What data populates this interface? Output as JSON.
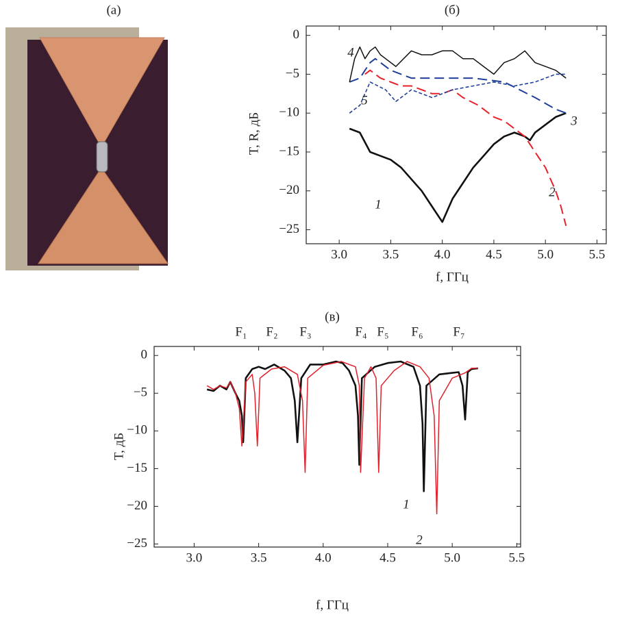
{
  "photo": {
    "label": "(a)"
  },
  "chart_data": [
    {
      "type": "line",
      "label": "(б)",
      "ylabel": "T, R, дБ",
      "xlabel": "f, ГГц",
      "xlim": [
        2.68,
        5.59
      ],
      "ylim": [
        -26.8,
        1.2
      ],
      "xticks": [
        {
          "value": 3,
          "label": "3.0"
        },
        3.5,
        {
          "value": 4,
          "label": "4.0"
        },
        4.5,
        {
          "value": 5,
          "label": "5.0"
        },
        5.5
      ],
      "yticks": [
        0,
        {
          "value": -5,
          "label": "−5"
        },
        {
          "value": -10,
          "label": "−10"
        },
        {
          "value": -15,
          "label": "−15"
        },
        {
          "value": -20,
          "label": "−20"
        },
        {
          "value": -25,
          "label": "−25"
        }
      ],
      "series": [
        {
          "name": "1",
          "color": "#111111",
          "line_style": "bold",
          "x": [
            3.1,
            3.2,
            3.3,
            3.4,
            3.5,
            3.6,
            3.7,
            3.8,
            3.9,
            4.0,
            4.1,
            4.2,
            4.3,
            4.4,
            4.5,
            4.6,
            4.7,
            4.8,
            4.85,
            4.9,
            5.0,
            5.1,
            5.2
          ],
          "values": [
            -12,
            -12.5,
            -15,
            -15.5,
            -16,
            -17,
            -18.5,
            -20,
            -22,
            -24,
            -21,
            -19,
            -17,
            -15.5,
            -14,
            -13,
            -12.5,
            -13,
            -13.5,
            -12.5,
            -11.5,
            -10.5,
            -10
          ]
        },
        {
          "name": "2",
          "color": "#e8202a",
          "line_style": "dashed",
          "x": [
            3.25,
            3.3,
            3.4,
            3.5,
            3.6,
            3.7,
            3.8,
            3.9,
            4.0,
            4.1,
            4.2,
            4.35,
            4.5,
            4.6,
            4.7,
            4.8,
            4.9,
            5.0,
            5.1,
            5.15,
            5.2
          ],
          "values": [
            -5,
            -4.5,
            -5.5,
            -6,
            -6.5,
            -6.5,
            -7,
            -7.5,
            -7.5,
            -7,
            -8,
            -9,
            -10.5,
            -11,
            -12,
            -13,
            -15,
            -17,
            -20,
            -22,
            -24.5
          ]
        },
        {
          "name": "3",
          "color": "#1f3f9a",
          "line_style": "dashed",
          "x": [
            3.1,
            3.2,
            3.3,
            3.35,
            3.5,
            3.7,
            3.9,
            4.0,
            4.3,
            4.6,
            4.9,
            5.1,
            5.2
          ],
          "values": [
            -6,
            -5.5,
            -3.5,
            -3,
            -4.5,
            -5.5,
            -5.5,
            -5.5,
            -5.5,
            -6,
            -8,
            -9.5,
            -10
          ]
        },
        {
          "name": "4",
          "color": "#111111",
          "line_style": "solid",
          "x": [
            3.1,
            3.15,
            3.2,
            3.25,
            3.3,
            3.35,
            3.4,
            3.45,
            3.55,
            3.7,
            3.8,
            3.9,
            4.0,
            4.1,
            4.2,
            4.3,
            4.4,
            4.5,
            4.6,
            4.7,
            4.8,
            4.9,
            5.0,
            5.1,
            5.2
          ],
          "values": [
            -6,
            -3,
            -1.5,
            -3,
            -2,
            -1.5,
            -2.5,
            -3,
            -4,
            -2,
            -2.5,
            -2.5,
            -2,
            -2,
            -3,
            -3,
            -4,
            -5,
            -3.5,
            -3,
            -2,
            -3.5,
            -4,
            -4.5,
            -5.5
          ]
        },
        {
          "name": "5",
          "color": "#1f3f9a",
          "line_style": "dotted",
          "x": [
            3.1,
            3.2,
            3.3,
            3.45,
            3.55,
            3.7,
            3.9,
            4.1,
            4.3,
            4.5,
            4.7,
            4.9,
            5.0,
            5.1,
            5.2
          ],
          "values": [
            -10,
            -9,
            -6,
            -7,
            -8.5,
            -7,
            -8,
            -7,
            -6.5,
            -6,
            -6.5,
            -6,
            -5.5,
            -5,
            -5
          ]
        }
      ]
    },
    {
      "type": "line",
      "label": "(в)",
      "ylabel": "T, дБ",
      "xlabel": "f, ГГц",
      "xlim": [
        2.69,
        5.53
      ],
      "ylim": [
        -25.4,
        1.2
      ],
      "xticks": [
        {
          "value": 3,
          "label": "3.0"
        },
        3.5,
        {
          "value": 4,
          "label": "4.0"
        },
        4.5,
        {
          "value": 5,
          "label": "5.0"
        },
        5.5
      ],
      "yticks": [
        0,
        {
          "value": -5,
          "label": "−5"
        },
        {
          "value": -10,
          "label": "−10"
        },
        {
          "value": -15,
          "label": "−15"
        },
        {
          "value": -20,
          "label": "−20"
        },
        {
          "value": -25,
          "label": "−25"
        }
      ],
      "annotations": [
        "F₁",
        "F₂",
        "F₃",
        "F₄",
        "F₅",
        "F₆",
        "F₇"
      ],
      "series": [
        {
          "name": "1",
          "color": "#111111",
          "line_style": "bold",
          "x": [
            3.1,
            3.15,
            3.2,
            3.25,
            3.28,
            3.32,
            3.35,
            3.37,
            3.38,
            3.4,
            3.45,
            3.5,
            3.55,
            3.62,
            3.7,
            3.75,
            3.78,
            3.8,
            3.83,
            3.9,
            4.0,
            4.1,
            4.15,
            4.2,
            4.25,
            4.27,
            4.28,
            4.3,
            4.4,
            4.5,
            4.6,
            4.7,
            4.75,
            4.77,
            4.78,
            4.8,
            4.9,
            5.0,
            5.05,
            5.08,
            5.1,
            5.12,
            5.15,
            5.2
          ],
          "values": [
            -4.5,
            -4.7,
            -4,
            -4.5,
            -3.5,
            -5,
            -6,
            -8,
            -11.5,
            -3,
            -1.8,
            -1.5,
            -1.8,
            -1.2,
            -2,
            -3,
            -6,
            -11.5,
            -3,
            -1.2,
            -1.2,
            -0.8,
            -1,
            -2,
            -4,
            -8,
            -14.5,
            -3,
            -1.5,
            -1,
            -0.8,
            -1.5,
            -4,
            -9,
            -18,
            -4,
            -2.5,
            -2.3,
            -2.2,
            -4,
            -8.5,
            -2.2,
            -1.8,
            -1.7
          ]
        },
        {
          "name": "2",
          "color": "#e0202a",
          "line_style": "solid",
          "x": [
            3.1,
            3.15,
            3.2,
            3.25,
            3.28,
            3.32,
            3.35,
            3.37,
            3.4,
            3.45,
            3.47,
            3.49,
            3.51,
            3.6,
            3.7,
            3.8,
            3.84,
            3.86,
            3.88,
            4.0,
            4.14,
            4.25,
            4.28,
            4.29,
            4.32,
            4.37,
            4.41,
            4.43,
            4.45,
            4.55,
            4.65,
            4.75,
            4.82,
            4.86,
            4.88,
            4.9,
            5.0,
            5.1,
            5.15,
            5.2
          ],
          "values": [
            -4,
            -4.5,
            -4,
            -4.3,
            -3.5,
            -5,
            -7,
            -12,
            -3.5,
            -2.5,
            -5,
            -12,
            -3,
            -1.8,
            -1.5,
            -2.5,
            -6,
            -15.5,
            -3,
            -1.3,
            -0.8,
            -1.5,
            -4,
            -15.5,
            -3,
            -1.5,
            -3,
            -15.5,
            -4,
            -2,
            -0.8,
            -1.5,
            -3,
            -8,
            -21,
            -6,
            -3,
            -2.3,
            -1.7,
            -1.7
          ]
        }
      ]
    }
  ]
}
